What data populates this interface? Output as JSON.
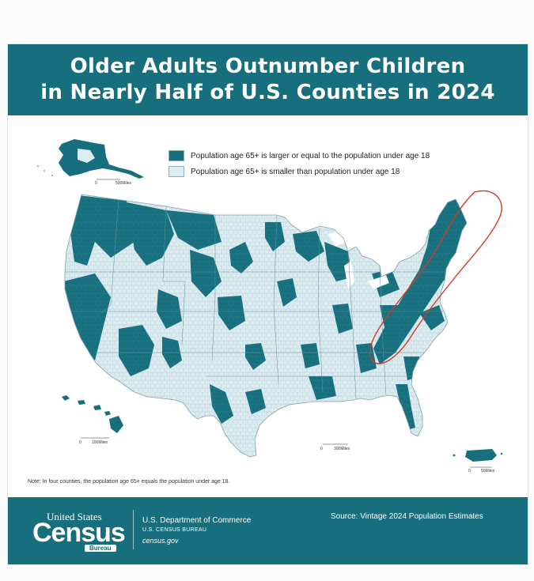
{
  "header": {
    "title_line1": "Older Adults Outnumber Children",
    "title_line2": "in Nearly Half of U.S. Counties in 2024"
  },
  "legend": {
    "items": [
      {
        "label": "Population age 65+ is larger or equal to the population under age 18",
        "color": "#176e7c"
      },
      {
        "label": "Population age 65+ is smaller than population under age 18",
        "color": "#dcedf2"
      }
    ]
  },
  "scales": {
    "alaska": {
      "zero": "0",
      "distance": "500Miles"
    },
    "hawaii": {
      "zero": "0",
      "distance": "100Miles"
    },
    "conus": {
      "zero": "0",
      "distance": "300Miles"
    },
    "puerto_rico": {
      "zero": "0",
      "distance": "50Miles"
    }
  },
  "note": "Note: In four counties, the population age 65+ equals the population under age 18.",
  "footer": {
    "logo_top": "United States",
    "logo_main": "Census",
    "logo_bureau": "Bureau",
    "department": "U.S. Department of Commerce",
    "bureau": "U.S. CENSUS BUREAU",
    "website": "census.gov",
    "source": "Source: Vintage 2024 Population Estimates"
  },
  "colors": {
    "teal": "#176e7c",
    "light": "#dcedf2",
    "highlight": "#d23a22"
  }
}
